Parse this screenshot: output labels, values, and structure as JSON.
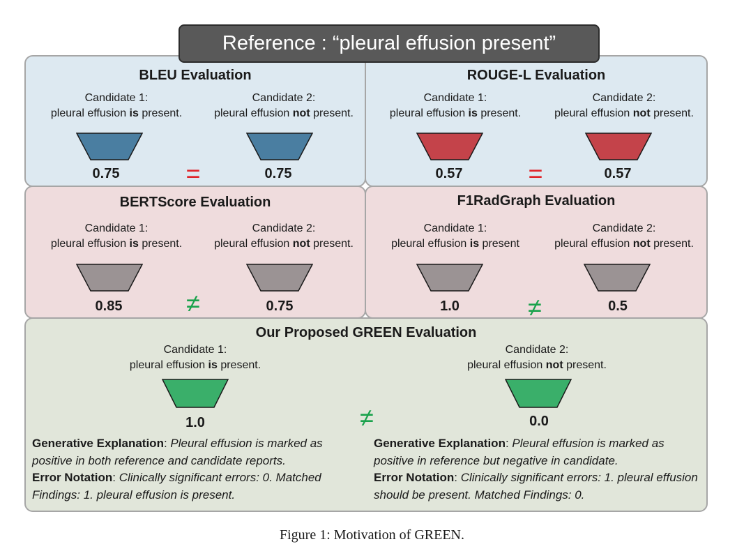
{
  "reference": "Reference : “pleural effusion present”",
  "caption": "Figure 1: Motivation of GREEN.",
  "colors": {
    "blue_funnel": "#4a7ea1",
    "red_funnel": "#c4434a",
    "gray_funnel": "#9b9394",
    "green_funnel": "#3aaf6a",
    "equal_sign": "#e0242a",
    "notequal_sign": "#1aa24c"
  },
  "panels": {
    "bleu": {
      "title": "BLEU Evaluation",
      "c1_label": "Candidate 1:",
      "c1_pre": "pleural effusion ",
      "c1_bold": "is",
      "c1_post": " present.",
      "c2_label": "Candidate 2:",
      "c2_pre": "pleural effusion ",
      "c2_bold": "not",
      "c2_post": " present.",
      "score1": "0.75",
      "score2": "0.75",
      "relation": "="
    },
    "rouge": {
      "title": "ROUGE-L Evaluation",
      "c1_label": "Candidate 1:",
      "c1_pre": "pleural effusion ",
      "c1_bold": "is",
      "c1_post": " present.",
      "c2_label": "Candidate 2:",
      "c2_pre": "pleural effusion ",
      "c2_bold": "not",
      "c2_post": " present.",
      "score1": "0.57",
      "score2": "0.57",
      "relation": "="
    },
    "bertscore": {
      "title": "BERTScore Evaluation",
      "c1_label": "Candidate 1:",
      "c1_pre": "pleural effusion ",
      "c1_bold": "is",
      "c1_post": " present.",
      "c2_label": "Candidate 2:",
      "c2_pre": "pleural effusion ",
      "c2_bold": "not",
      "c2_post": " present.",
      "score1": "0.85",
      "score2": "0.75",
      "relation": "≠"
    },
    "f1radgraph": {
      "title": "F1RadGraph Evaluation",
      "c1_label": "Candidate 1:",
      "c1_pre": "pleural effusion ",
      "c1_bold": "is",
      "c1_post": " present",
      "c2_label": "Candidate 2:",
      "c2_pre": "pleural effusion ",
      "c2_bold": "not",
      "c2_post": " present.",
      "score1": "1.0",
      "score2": "0.5",
      "relation": "≠"
    },
    "green": {
      "title": "Our Proposed GREEN Evaluation",
      "c1_label": "Candidate 1:",
      "c1_pre": "pleural effusion ",
      "c1_bold": "is",
      "c1_post": " present.",
      "c2_label": "Candidate 2:",
      "c2_pre": "pleural effusion ",
      "c2_bold": "not",
      "c2_post": " present.",
      "score1": "1.0",
      "score2": "0.0",
      "relation": "≠",
      "left": {
        "gen_label": "Generative Explanation",
        "gen_text": "Pleural effusion is marked as positive in both reference and candidate reports.",
        "err_label": "Error Notation",
        "err_text": "Clinically significant errors: 0. Matched Findings: 1. pleural effusion is present."
      },
      "right": {
        "gen_label": "Generative Explanation",
        "gen_text": "Pleural effusion is marked as positive in reference but negative in candidate.",
        "err_label": "Error Notation",
        "err_text": "Clinically significant errors: 1. pleural effusion should be present. Matched Findings: 0."
      }
    }
  }
}
